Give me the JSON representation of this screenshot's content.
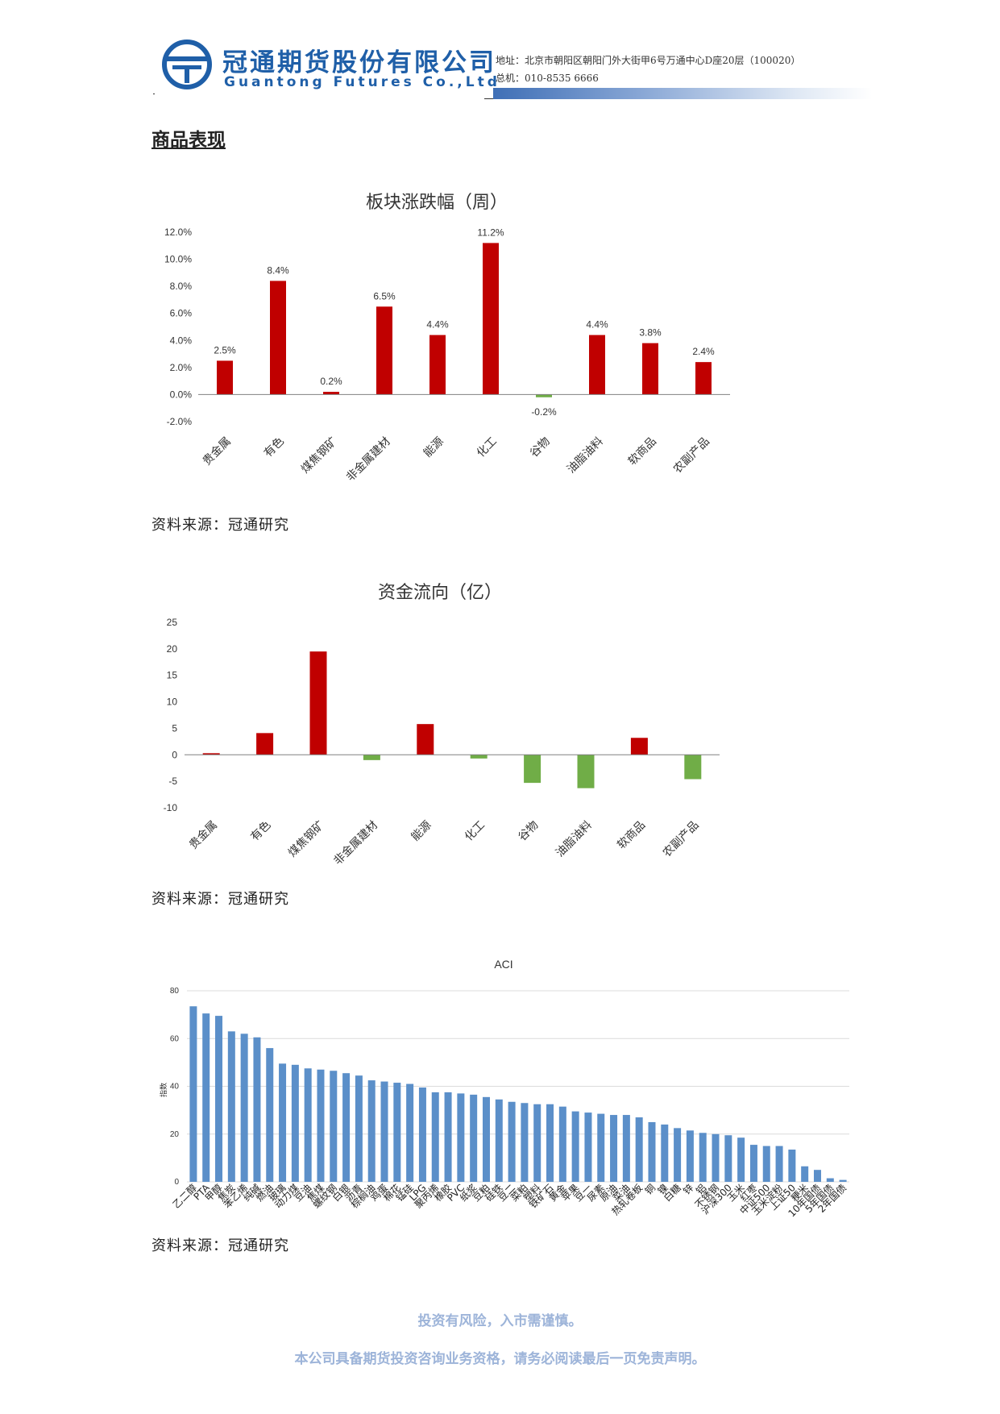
{
  "header": {
    "company_cn": "冠通期货股份有限公司",
    "company_en": "Guantong Futures Co.,Ltd",
    "address": "地址：北京市朝阳区朝阳门外大街甲6号万通中心D座20层（100020）",
    "phone": "总机：010-8535 6666",
    "colors": {
      "brand": "#1f5fa8",
      "band": "#3f6fb6"
    }
  },
  "section_title": "商品表现",
  "sources": [
    "资料来源：冠通研究",
    "资料来源：冠通研究",
    "资料来源：冠通研究"
  ],
  "footer": {
    "risk": "投资有风险，入市需谨慎。",
    "disclaimer": "本公司具备期货投资咨询业务资格，请务必阅读最后一页免责声明。"
  },
  "chart_data": [
    {
      "type": "bar",
      "title": "板块涨跌幅（周）",
      "categories": [
        "贵金属",
        "有色",
        "煤焦钢矿",
        "非金属建材",
        "能源",
        "化工",
        "谷物",
        "油脂油料",
        "软商品",
        "农副产品"
      ],
      "values": [
        2.5,
        8.4,
        0.2,
        6.5,
        4.4,
        11.2,
        -0.2,
        4.4,
        3.8,
        2.4
      ],
      "data_labels": [
        "2.5%",
        "8.4%",
        "0.2%",
        "6.5%",
        "4.4%",
        "11.2%",
        "-0.2%",
        "4.4%",
        "3.8%",
        "2.4%"
      ],
      "y_ticks": [
        "-2.0%",
        "0.0%",
        "2.0%",
        "4.0%",
        "6.0%",
        "8.0%",
        "10.0%",
        "12.0%"
      ],
      "ylim": [
        -2,
        12
      ],
      "grid": false,
      "colors": {
        "positive": "#c00000",
        "negative": "#70ad47"
      }
    },
    {
      "type": "bar",
      "title": "资金流向（亿）",
      "categories": [
        "贵金属",
        "有色",
        "煤焦钢矿",
        "非金属建材",
        "能源",
        "化工",
        "谷物",
        "油脂油料",
        "软商品",
        "农副产品"
      ],
      "values": [
        0.3,
        4.1,
        19.5,
        -1.0,
        5.8,
        -0.7,
        -5.3,
        -6.3,
        3.2,
        -4.6
      ],
      "y_ticks": [
        "-10",
        "-5",
        "0",
        "5",
        "10",
        "15",
        "20",
        "25"
      ],
      "ylim": [
        -10,
        25
      ],
      "grid": false,
      "colors": {
        "positive": "#c00000",
        "negative": "#70ad47"
      }
    },
    {
      "type": "bar",
      "title": "ACI",
      "ylabel": "指数",
      "categories": [
        "乙二醇",
        "PTA",
        "甲醇",
        "焦炭",
        "苯乙烯",
        "纯碱",
        "燃油",
        "玻璃",
        "动力煤",
        "豆油",
        "焦煤",
        "螺纹钢",
        "白银",
        "沥青",
        "棕榈油",
        "鸡蛋",
        "棉花",
        "锰硅",
        "LPG",
        "聚丙烯",
        "橡胶",
        "PVC",
        "纸浆",
        "豆粕",
        "硅铁",
        "豆二",
        "菜粕",
        "塑料",
        "铁矿石",
        "黄金",
        "苹果",
        "豆一",
        "尿素",
        "原油",
        "菜油",
        "热轧卷板",
        "铜",
        "镍",
        "白糖",
        "锌",
        "铝",
        "不锈钢",
        "沪深300",
        "玉米",
        "红枣",
        "中证500",
        "玉米淀粉",
        "上证50",
        "粳米",
        "10年国债",
        "5年国债",
        "2年国债"
      ],
      "values": [
        73.5,
        70.5,
        69.5,
        63,
        62,
        60.5,
        56,
        49.5,
        49,
        47.5,
        47,
        46.5,
        45.5,
        44.5,
        42.5,
        42,
        41.5,
        41,
        39.5,
        37.5,
        37.5,
        37,
        36.5,
        35.5,
        34.5,
        33.5,
        33,
        32.5,
        32.5,
        31.5,
        29.5,
        29,
        28.5,
        28,
        28,
        27,
        25,
        24,
        22.5,
        21.5,
        20.5,
        20,
        19.5,
        18.5,
        15.5,
        15,
        15,
        13.5,
        6.5,
        5,
        1.5,
        0.8
      ],
      "y_ticks": [
        "0",
        "20",
        "40",
        "60",
        "80"
      ],
      "ylim": [
        0,
        80
      ],
      "grid": true,
      "colors": {
        "bar": "#5b8fc9"
      }
    }
  ]
}
